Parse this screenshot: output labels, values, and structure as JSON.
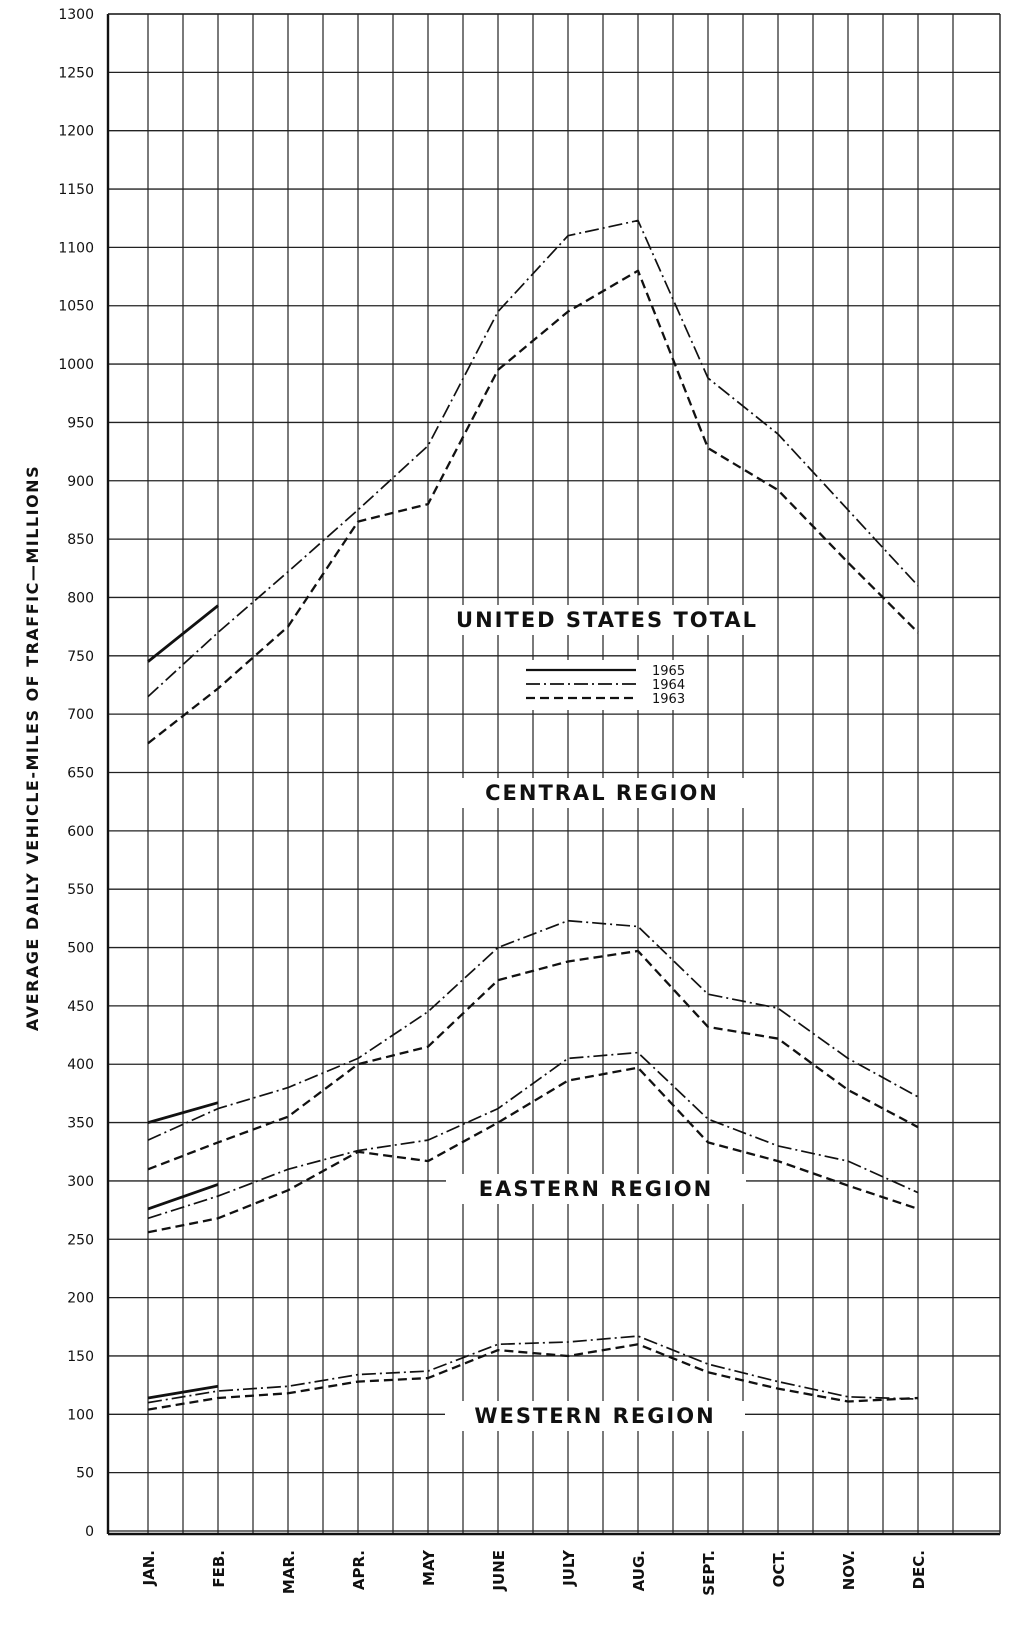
{
  "chart_data": {
    "type": "line",
    "ylabel": "AVERAGE DAILY VEHICLE-MILES OF TRAFFIC—MILLIONS",
    "xlabel": "",
    "ylim": [
      0,
      1300
    ],
    "yticks": [
      0,
      50,
      100,
      150,
      200,
      250,
      300,
      350,
      400,
      450,
      500,
      550,
      600,
      650,
      700,
      750,
      800,
      850,
      900,
      950,
      1000,
      1050,
      1100,
      1150,
      1200,
      1250,
      1300
    ],
    "categories": [
      "JAN.",
      "FEB.",
      "MAR.",
      "APR.",
      "MAY",
      "JUNE",
      "JULY",
      "AUG.",
      "SEPT.",
      "OCT.",
      "NOV.",
      "DEC."
    ],
    "grid": true,
    "legend": {
      "placement": "center",
      "entries": [
        {
          "label": "1965",
          "style": "solid"
        },
        {
          "label": "1964",
          "style": "dash-dot"
        },
        {
          "label": "1963",
          "style": "dashed"
        }
      ]
    },
    "annotations": [
      "UNITED STATES TOTAL",
      "CENTRAL REGION",
      "EASTERN REGION",
      "WESTERN REGION"
    ],
    "groups": [
      {
        "name": "UNITED STATES TOTAL",
        "series": [
          {
            "name": "1965",
            "values": [
              745,
              793,
              null,
              null,
              null,
              null,
              null,
              null,
              null,
              null,
              null,
              null
            ]
          },
          {
            "name": "1964",
            "values": [
              715,
              770,
              822,
              875,
              930,
              1045,
              1110,
              1123,
              988,
              940,
              875,
              810
            ]
          },
          {
            "name": "1963",
            "values": [
              675,
              722,
              775,
              865,
              880,
              995,
              1045,
              1080,
              928,
              892,
              830,
              770
            ]
          }
        ]
      },
      {
        "name": "CENTRAL REGION",
        "series": [
          {
            "name": "1965",
            "values": [
              350,
              367,
              null,
              null,
              null,
              null,
              null,
              null,
              null,
              null,
              null,
              null
            ]
          },
          {
            "name": "1964",
            "values": [
              335,
              362,
              380,
              405,
              445,
              500,
              523,
              518,
              460,
              448,
              405,
              372
            ]
          },
          {
            "name": "1963",
            "values": [
              310,
              333,
              355,
              400,
              415,
              472,
              488,
              497,
              432,
              422,
              378,
              346
            ]
          }
        ]
      },
      {
        "name": "EASTERN REGION",
        "series": [
          {
            "name": "1965",
            "values": [
              276,
              297,
              null,
              null,
              null,
              null,
              null,
              null,
              null,
              null,
              null,
              null
            ]
          },
          {
            "name": "1964",
            "values": [
              268,
              287,
              310,
              326,
              335,
              362,
              405,
              410,
              353,
              330,
              317,
              290
            ]
          },
          {
            "name": "1963",
            "values": [
              256,
              268,
              292,
              325,
              317,
              350,
              386,
              397,
              333,
              317,
              296,
              276
            ]
          }
        ]
      },
      {
        "name": "WESTERN REGION",
        "series": [
          {
            "name": "1965",
            "values": [
              114,
              124,
              null,
              null,
              null,
              null,
              null,
              null,
              null,
              null,
              null,
              null
            ]
          },
          {
            "name": "1964",
            "values": [
              110,
              120,
              124,
              134,
              137,
              160,
              162,
              167,
              143,
              128,
              115,
              113
            ]
          },
          {
            "name": "1963",
            "values": [
              104,
              114,
              118,
              128,
              131,
              155,
              150,
              160,
              136,
              122,
              111,
              114
            ]
          }
        ]
      }
    ]
  }
}
